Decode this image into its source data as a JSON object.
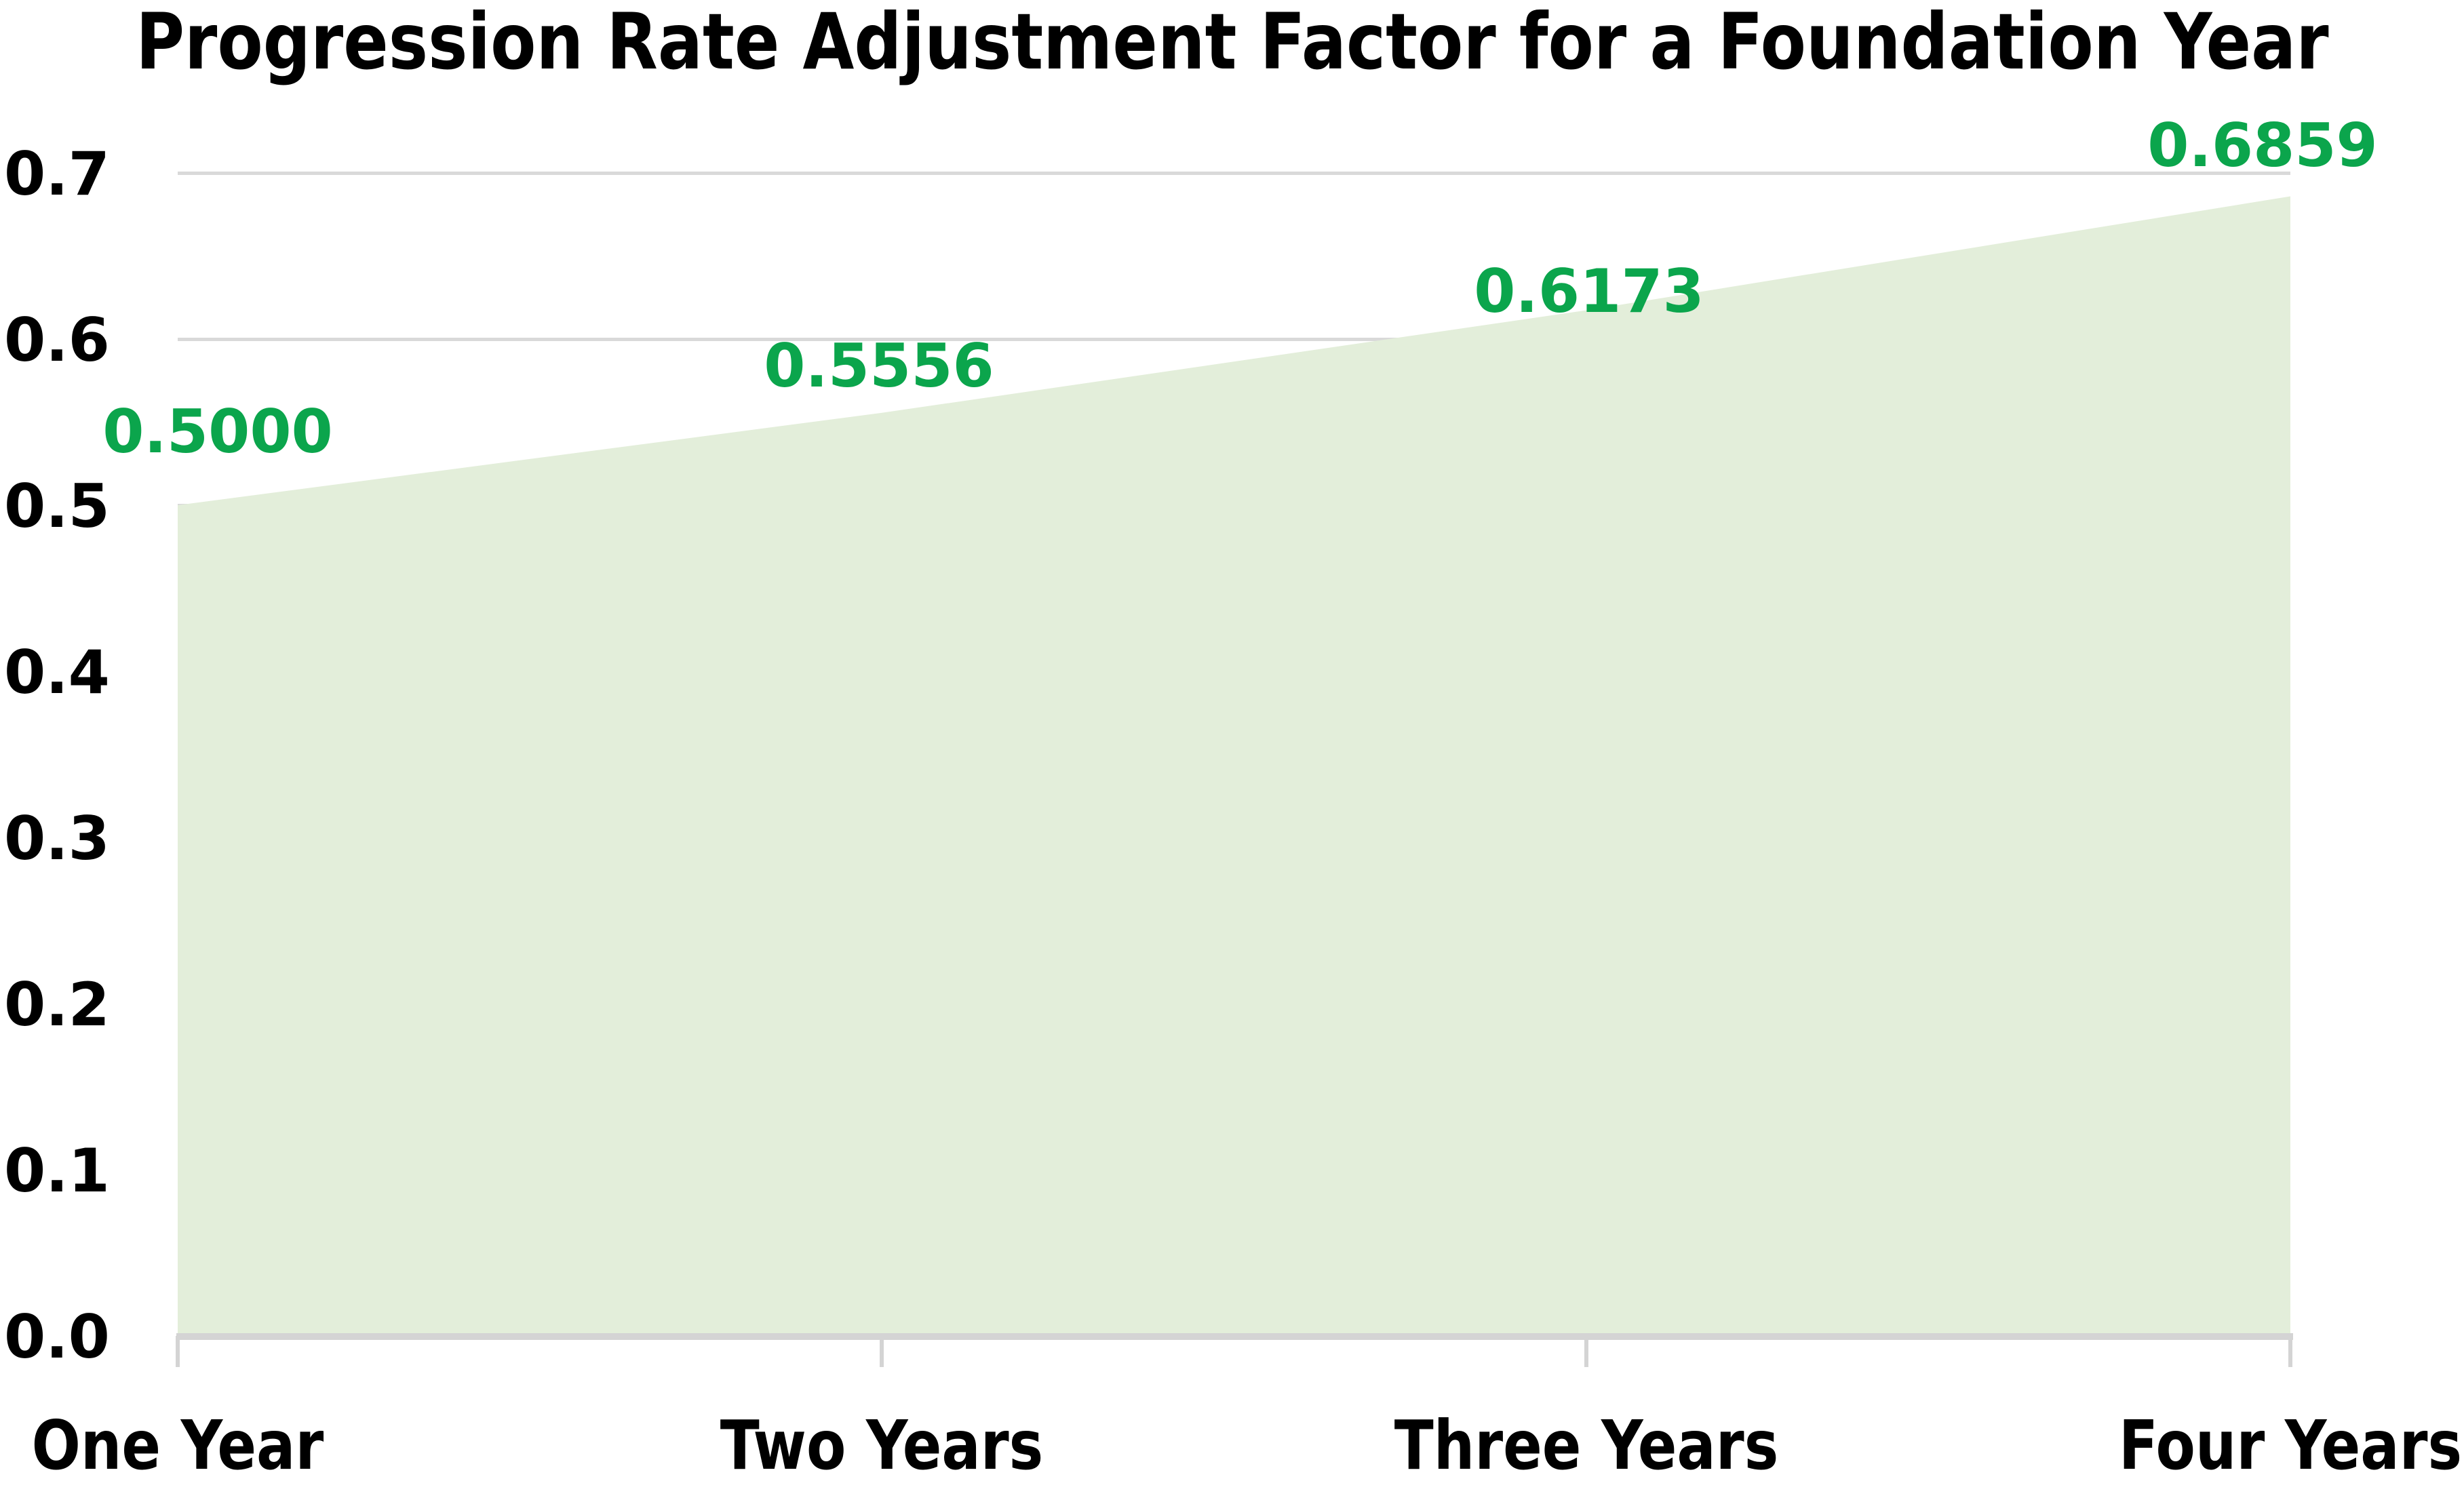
{
  "chart_data": {
    "type": "area",
    "title": "Progression Rate Adjustment Factor for a Foundation Year",
    "categories": [
      "One Year",
      "Two Years",
      "Three Years",
      "Four Years"
    ],
    "values": [
      0.5,
      0.5556,
      0.6173,
      0.6859
    ],
    "data_labels": [
      "0.5000",
      "0.5556",
      "0.6173",
      "0.6859"
    ],
    "y_ticks": [
      "0.0",
      "0.1",
      "0.2",
      "0.3",
      "0.4",
      "0.5",
      "0.6",
      "0.7"
    ],
    "ylim": [
      0.0,
      0.7
    ],
    "grid": true,
    "legend": "none",
    "colors": {
      "area_fill": "#e3eeda",
      "data_label_green": "#0ba54c",
      "gridline": "#d9d9d9",
      "axis_line": "#d4d4d4",
      "text": "#000000",
      "background": "#ffffff"
    }
  }
}
